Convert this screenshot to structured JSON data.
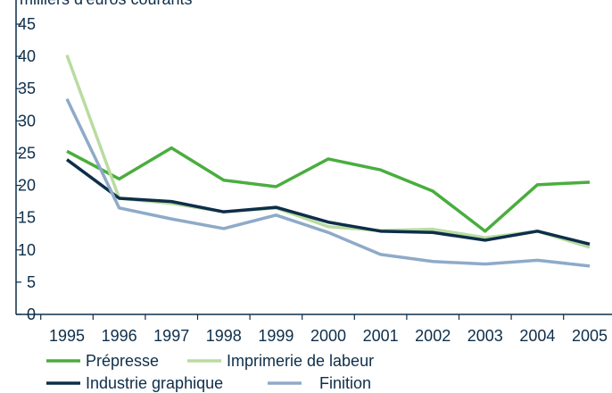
{
  "chart_data": {
    "type": "line",
    "y_axis_label": "milliers d'euros courants",
    "categories": [
      "1995",
      "1996",
      "1997",
      "1998",
      "1999",
      "2000",
      "2001",
      "2002",
      "2003",
      "2004",
      "2005"
    ],
    "series": [
      {
        "name": "Prépresse",
        "color": "#4aad3f",
        "values": [
          25.3,
          21.0,
          25.8,
          20.8,
          19.8,
          24.1,
          22.4,
          19.1,
          12.9,
          20.1,
          20.5
        ]
      },
      {
        "name": "Imprimerie de labeur",
        "color": "#b9dca0",
        "values": [
          40.2,
          18.0,
          17.2,
          15.9,
          16.5,
          13.6,
          13.0,
          13.2,
          11.9,
          12.9,
          10.4
        ]
      },
      {
        "name": "Industrie graphique",
        "color": "#0d2e4a",
        "values": [
          24.0,
          18.0,
          17.5,
          15.9,
          16.6,
          14.3,
          12.9,
          12.7,
          11.5,
          12.9,
          10.9
        ]
      },
      {
        "name": "Finition",
        "color": "#8eaac8",
        "values": [
          33.4,
          16.5,
          14.8,
          13.3,
          15.4,
          12.7,
          9.3,
          8.2,
          7.8,
          8.4,
          7.5
        ]
      }
    ],
    "ylim": [
      0,
      45
    ],
    "yticks": [
      0,
      5,
      10,
      15,
      20,
      25,
      30,
      35,
      40,
      45
    ]
  }
}
